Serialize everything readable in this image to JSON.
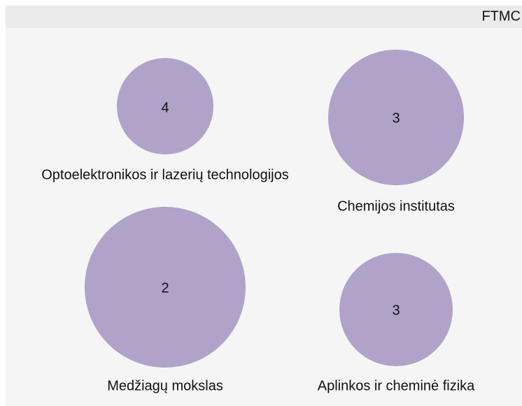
{
  "header": {
    "title": "FTMC"
  },
  "nodes": [
    {
      "label": "Optoelektronikos ir lazerių technologijos",
      "value": 4
    },
    {
      "label": "Chemijos institutas",
      "value": 3
    },
    {
      "label": "Medžiagų mokslas",
      "value": 2
    },
    {
      "label": "Aplinkos ir cheminė fizika",
      "value": 3
    }
  ]
}
